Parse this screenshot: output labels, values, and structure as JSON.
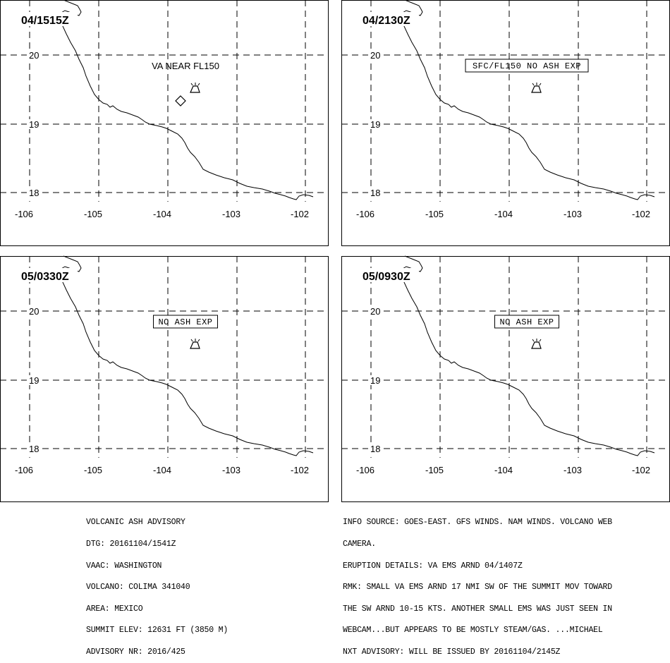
{
  "panels": [
    {
      "time": "04/1515Z",
      "label": "VA NEAR FL150",
      "label_boxed": false,
      "ash_area": true
    },
    {
      "time": "04/2130Z",
      "label": "SFC/FL150 NO ASH EXP",
      "label_boxed": true,
      "ash_area": false
    },
    {
      "time": "05/0330Z",
      "label": "NO ASH EXP",
      "label_boxed": true,
      "ash_area": false
    },
    {
      "time": "05/0930Z",
      "label": "NO ASH EXP",
      "label_boxed": true,
      "ash_area": false
    }
  ],
  "map": {
    "lon_ticks": [
      "-106",
      "-105",
      "-104",
      "-103",
      "-102"
    ],
    "lat_ticks": [
      "20",
      "19",
      "18"
    ],
    "volcano_icon": "volcano-triangle-icon",
    "ash_icon": "diamond-outline-icon",
    "line_color": "#000000",
    "background": "#ffffff"
  },
  "advisory_left": [
    "VOLCANIC ASH ADVISORY",
    "DTG: 20161104/1541Z",
    "VAAC: WASHINGTON",
    "VOLCANO: COLIMA 341040",
    "AREA: MEXICO",
    "SUMMIT ELEV: 12631 FT (3850 M)",
    "ADVISORY NR: 2016/425"
  ],
  "advisory_right": [
    "INFO SOURCE: GOES-EAST. GFS WINDS. NAM WINDS. VOLCANO WEB",
    "CAMERA.",
    "ERUPTION DETAILS: VA EMS ARND 04/1407Z",
    "RMK: SMALL VA EMS ARND 17 NMI SW OF THE SUMMIT MOV TOWARD",
    "THE SW ARND 10-15 KTS. ANOTHER SMALL EMS WAS JUST SEEN IN",
    "WEBCAM...BUT APPEARS TO BE MOSTLY STEAM/GAS. ...MICHAEL",
    "NXT ADVISORY: WILL BE ISSUED BY 20161104/2145Z"
  ]
}
